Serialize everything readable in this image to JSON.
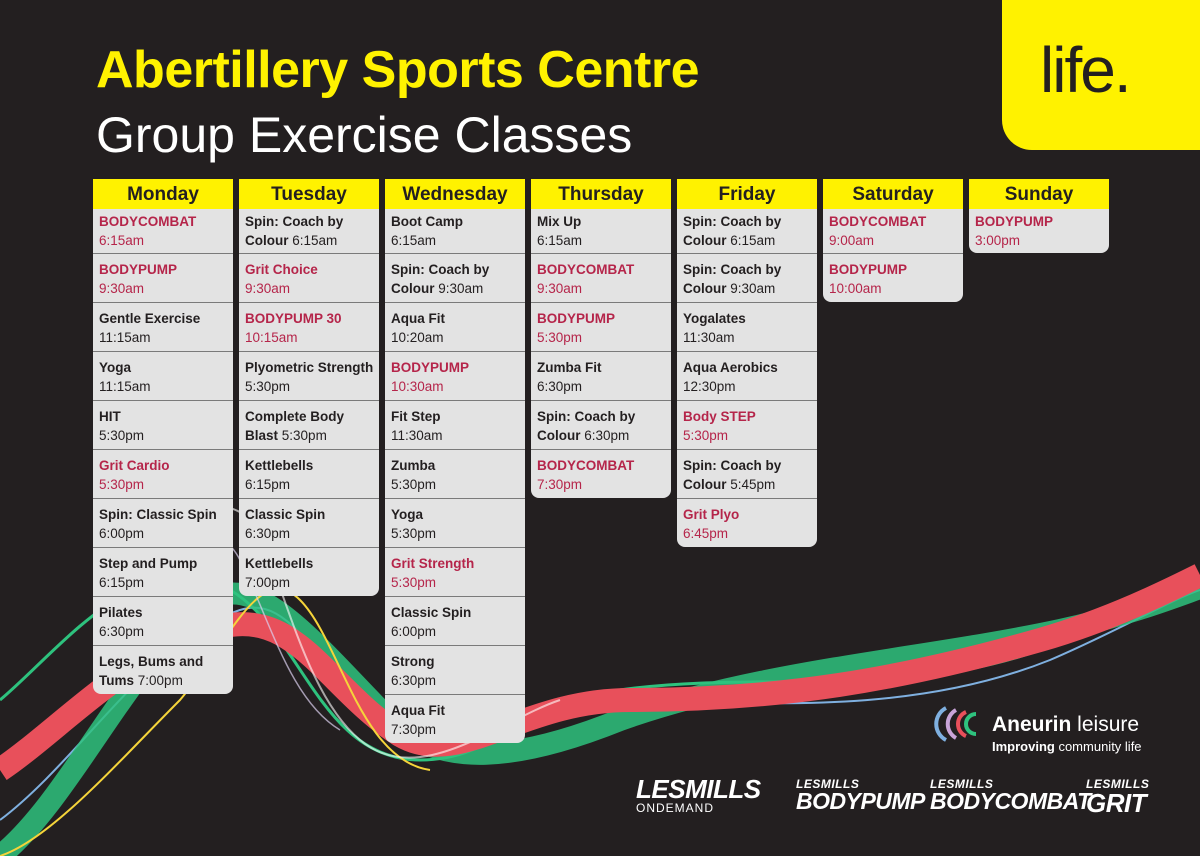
{
  "header": {
    "title": "Abertillery Sports Centre",
    "subtitle": "Group Exercise Classes"
  },
  "brand": {
    "badge_text": "life."
  },
  "colors": {
    "background": "#231f20",
    "accent_yellow": "#fff200",
    "highlight_class": "#b5254a",
    "wave_red": "#e8505b",
    "wave_green": "#2ec27e",
    "wave_blue": "#7fb0e0"
  },
  "timetable": [
    {
      "day": "Monday",
      "classes": [
        {
          "name": "BODYCOMBAT",
          "time": "6:15am",
          "highlight": true
        },
        {
          "name": "BODYPUMP",
          "time": "9:30am",
          "highlight": true
        },
        {
          "name": "Gentle Exercise",
          "time": "11:15am",
          "highlight": false
        },
        {
          "name": "Yoga",
          "time": "11:15am",
          "highlight": false
        },
        {
          "name": "HIT",
          "time": "5:30pm",
          "highlight": false
        },
        {
          "name": "Grit Cardio",
          "time": "5:30pm",
          "highlight": true
        },
        {
          "name": "Spin: Classic Spin",
          "time": "6:00pm",
          "highlight": false
        },
        {
          "name": "Step and Pump",
          "time": "6:15pm",
          "highlight": false
        },
        {
          "name": "Pilates",
          "time": "6:30pm",
          "highlight": false
        },
        {
          "name": "Legs, Bums and Tums",
          "time": "7:00pm",
          "highlight": false
        }
      ]
    },
    {
      "day": "Tuesday",
      "classes": [
        {
          "name": "Spin: Coach by Colour",
          "time": "6:15am",
          "highlight": false
        },
        {
          "name": "Grit Choice",
          "time": "9:30am",
          "highlight": true
        },
        {
          "name": "BODYPUMP 30",
          "time": "10:15am",
          "highlight": true
        },
        {
          "name": "Plyometric Strength",
          "time": "5:30pm",
          "highlight": false
        },
        {
          "name": "Complete Body Blast",
          "time": "5:30pm",
          "highlight": false
        },
        {
          "name": "Kettlebells",
          "time": "6:15pm",
          "highlight": false
        },
        {
          "name": "Classic Spin",
          "time": "6:30pm",
          "highlight": false
        },
        {
          "name": "Kettlebells",
          "time": "7:00pm",
          "highlight": false
        }
      ]
    },
    {
      "day": "Wednesday",
      "classes": [
        {
          "name": "Boot Camp",
          "time": "6:15am",
          "highlight": false
        },
        {
          "name": "Spin: Coach by Colour",
          "time": "9:30am",
          "highlight": false
        },
        {
          "name": "Aqua Fit",
          "time": "10:20am",
          "highlight": false
        },
        {
          "name": "BODYPUMP",
          "time": "10:30am",
          "highlight": true
        },
        {
          "name": "Fit Step",
          "time": "11:30am",
          "highlight": false
        },
        {
          "name": "Zumba",
          "time": "5:30pm",
          "highlight": false
        },
        {
          "name": "Yoga",
          "time": "5:30pm",
          "highlight": false
        },
        {
          "name": "Grit Strength",
          "time": "5:30pm",
          "highlight": true
        },
        {
          "name": "Classic Spin",
          "time": "6:00pm",
          "highlight": false
        },
        {
          "name": "Strong",
          "time": "6:30pm",
          "highlight": false
        },
        {
          "name": "Aqua Fit",
          "time": "7:30pm",
          "highlight": false
        }
      ]
    },
    {
      "day": "Thursday",
      "classes": [
        {
          "name": "Mix Up",
          "time": "6:15am",
          "highlight": false
        },
        {
          "name": "BODYCOMBAT",
          "time": "9:30am",
          "highlight": true
        },
        {
          "name": "BODYPUMP",
          "time": "5:30pm",
          "highlight": true
        },
        {
          "name": "Zumba Fit",
          "time": "6:30pm",
          "highlight": false
        },
        {
          "name": "Spin: Coach by Colour",
          "time": "6:30pm",
          "highlight": false
        },
        {
          "name": "BODYCOMBAT",
          "time": "7:30pm",
          "highlight": true
        }
      ]
    },
    {
      "day": "Friday",
      "classes": [
        {
          "name": "Spin: Coach by Colour",
          "time": "6:15am",
          "highlight": false
        },
        {
          "name": "Spin: Coach by Colour",
          "time": "9:30am",
          "highlight": false
        },
        {
          "name": "Yogalates",
          "time": "11:30am",
          "highlight": false
        },
        {
          "name": "Aqua Aerobics",
          "time": "12:30pm",
          "highlight": false
        },
        {
          "name": "Body STEP",
          "time": "5:30pm",
          "highlight": true
        },
        {
          "name": "Spin: Coach by Colour",
          "time": "5:45pm",
          "highlight": false
        },
        {
          "name": "Grit Plyo",
          "time": "6:45pm",
          "highlight": true
        }
      ]
    },
    {
      "day": "Saturday",
      "classes": [
        {
          "name": "BODYCOMBAT",
          "time": "9:00am",
          "highlight": true
        },
        {
          "name": "BODYPUMP",
          "time": "10:00am",
          "highlight": true
        }
      ]
    },
    {
      "day": "Sunday",
      "classes": [
        {
          "name": "BODYPUMP",
          "time": "3:00pm",
          "highlight": true
        }
      ]
    }
  ],
  "footer": {
    "aneurin_bold": "Aneurin",
    "aneurin_rest": " leisure",
    "tagline_bold": "Improving",
    "tagline_rest": " community life",
    "logos": [
      {
        "small": "LESMILLS",
        "big": "ONDEMAND",
        "icon": "lesmills-ondemand-logo"
      },
      {
        "small": "LESMILLS",
        "big": "BODYPUMP",
        "icon": "lesmills-bodypump-logo"
      },
      {
        "small": "LESMILLS",
        "big": "BODYCOMBAT",
        "icon": "lesmills-bodycombat-logo"
      },
      {
        "small": "LESMILLS",
        "big": "GRIT",
        "icon": "lesmills-grit-logo"
      }
    ]
  }
}
